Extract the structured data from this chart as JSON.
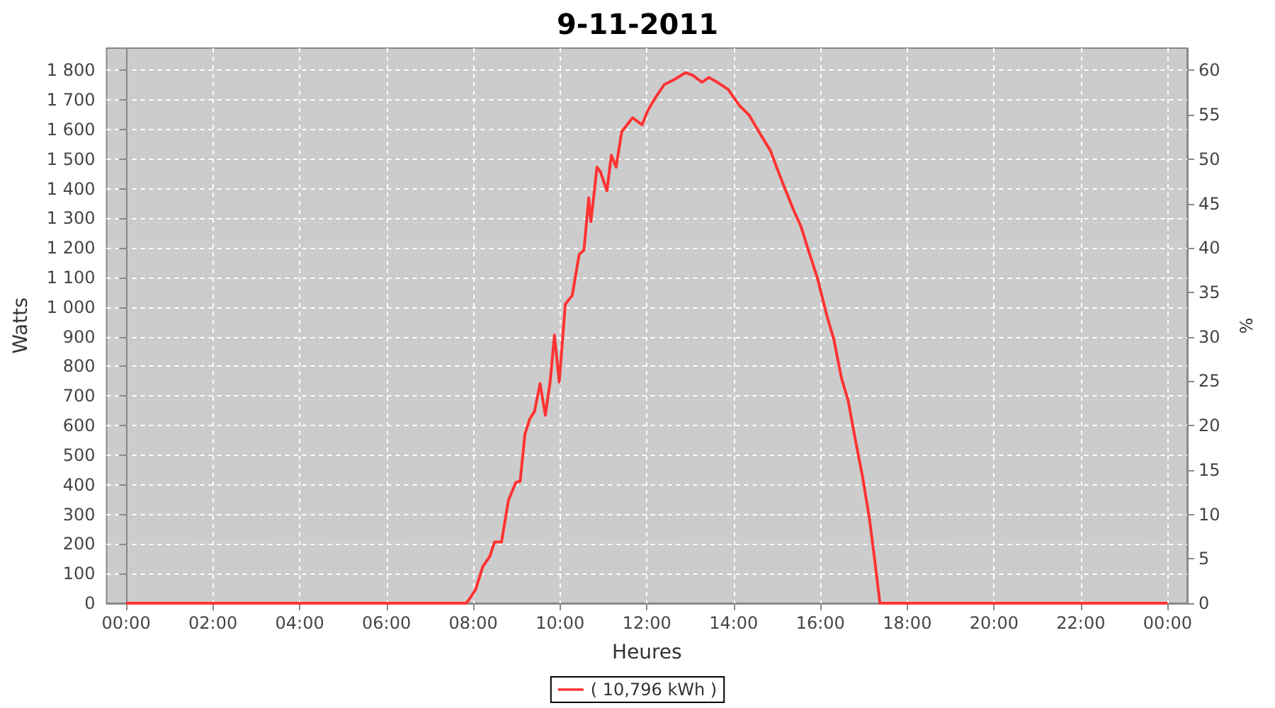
{
  "chart_data": {
    "type": "line",
    "title": "9-11-2011",
    "xlabel": "Heures",
    "ylabel": "Watts",
    "y2label": "%",
    "xlim": [
      -0.45,
      24.45
    ],
    "xticks": [
      {
        "value": 0,
        "label": "00:00"
      },
      {
        "value": 2,
        "label": "02:00"
      },
      {
        "value": 4,
        "label": "04:00"
      },
      {
        "value": 6,
        "label": "06:00"
      },
      {
        "value": 8,
        "label": "08:00"
      },
      {
        "value": 10,
        "label": "10:00"
      },
      {
        "value": 12,
        "label": "12:00"
      },
      {
        "value": 14,
        "label": "14:00"
      },
      {
        "value": 16,
        "label": "16:00"
      },
      {
        "value": 18,
        "label": "18:00"
      },
      {
        "value": 20,
        "label": "20:00"
      },
      {
        "value": 22,
        "label": "22:00"
      },
      {
        "value": 24,
        "label": "00:00"
      }
    ],
    "ylim": [
      0,
      1875
    ],
    "yticks": [
      0,
      100,
      200,
      300,
      400,
      500,
      600,
      700,
      800,
      900,
      {
        "value": 1000,
        "label": "1 000"
      },
      {
        "value": 1100,
        "label": "1 100"
      },
      {
        "value": 1200,
        "label": "1 200"
      },
      {
        "value": 1300,
        "label": "1 300"
      },
      {
        "value": 1400,
        "label": "1 400"
      },
      {
        "value": 1500,
        "label": "1 500"
      },
      {
        "value": 1600,
        "label": "1 600"
      },
      {
        "value": 1700,
        "label": "1 700"
      },
      {
        "value": 1800,
        "label": "1 800"
      }
    ],
    "y2lim": [
      0,
      62.5
    ],
    "y2ticks": [
      0,
      5,
      10,
      15,
      20,
      25,
      30,
      35,
      40,
      45,
      50,
      55,
      60
    ],
    "grid": true,
    "legend": "bottom",
    "series": [
      {
        "name": "( 10,796 kWh )",
        "color": "#ff3333",
        "x": [
          0,
          7.83,
          7.89,
          8.05,
          8.22,
          8.38,
          8.49,
          8.65,
          8.81,
          8.98,
          9.08,
          9.19,
          9.3,
          9.41,
          9.54,
          9.66,
          9.77,
          9.87,
          9.98,
          10.12,
          10.28,
          10.44,
          10.55,
          10.66,
          10.71,
          10.85,
          10.93,
          11.08,
          11.18,
          11.29,
          11.42,
          11.67,
          11.89,
          12.02,
          12.18,
          12.4,
          12.62,
          12.89,
          13.05,
          13.27,
          13.43,
          13.65,
          13.87,
          14.14,
          14.36,
          14.58,
          14.85,
          15.01,
          15.18,
          15.39,
          15.55,
          15.72,
          15.93,
          16.15,
          16.31,
          16.48,
          16.64,
          16.8,
          16.97,
          17.13,
          17.24,
          17.37,
          24
        ],
        "values": [
          0,
          0,
          10,
          45,
          124,
          158,
          207,
          207,
          348,
          408,
          412,
          571,
          622,
          648,
          742,
          635,
          747,
          906,
          747,
          1010,
          1040,
          1178,
          1193,
          1369,
          1289,
          1473,
          1457,
          1393,
          1513,
          1473,
          1593,
          1640,
          1616,
          1664,
          1704,
          1752,
          1768,
          1792,
          1784,
          1760,
          1776,
          1757,
          1736,
          1680,
          1648,
          1593,
          1528,
          1465,
          1401,
          1325,
          1273,
          1193,
          1098,
          970,
          890,
          763,
          683,
          555,
          427,
          284,
          157,
          0,
          0
        ]
      }
    ]
  }
}
